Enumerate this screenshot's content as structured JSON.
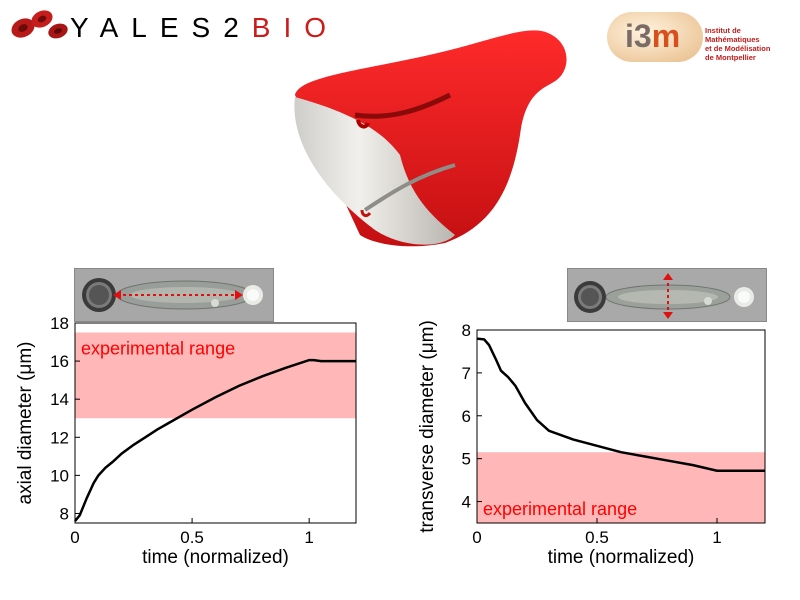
{
  "header": {
    "left_logo_text": {
      "part1": "YALES2",
      "part2": "BIO"
    },
    "right_logo": {
      "name_part1": "i3",
      "name_part2": "m",
      "caption_lines": [
        "Institut de Mathématiques",
        "et de Modélisation",
        "de Montpellier"
      ]
    }
  },
  "colors": {
    "range_fill": "#ffb7b7",
    "range_text": "#ff0000",
    "curve": "#000000",
    "shape_red": "#e8151a",
    "logo_red": "#cc1b1b"
  },
  "icons": {
    "left_thumb_arrow": "double-arrow-horizontal",
    "right_thumb_arrow": "double-arrow-vertical"
  },
  "chart_data": [
    {
      "type": "line",
      "title": "",
      "xlabel": "time (normalized)",
      "ylabel": "axial diameter (μm)",
      "xlim": [
        0,
        1.2
      ],
      "ylim": [
        7.5,
        18
      ],
      "xticks": [
        0,
        0.5,
        1
      ],
      "xtick_labels": [
        "0",
        "0.5",
        "1"
      ],
      "yticks": [
        8,
        10,
        12,
        14,
        16,
        18
      ],
      "ytick_labels": [
        "8",
        "10",
        "12",
        "14",
        "16",
        "18"
      ],
      "grid": false,
      "band": {
        "label": "experimental range",
        "y0": 13,
        "y1": 17.5,
        "label_position": "top-left"
      },
      "series": [
        {
          "x": [
            0,
            0.02,
            0.05,
            0.08,
            0.1,
            0.13,
            0.16,
            0.2,
            0.25,
            0.3,
            0.35,
            0.4,
            0.5,
            0.6,
            0.7,
            0.8,
            0.9,
            1.0,
            1.02,
            1.05,
            1.1,
            1.2
          ],
          "y": [
            7.6,
            7.9,
            8.8,
            9.6,
            10.0,
            10.4,
            10.7,
            11.15,
            11.6,
            12.0,
            12.4,
            12.75,
            13.45,
            14.1,
            14.7,
            15.2,
            15.65,
            16.05,
            16.05,
            16.0,
            16.0,
            16.0
          ]
        }
      ]
    },
    {
      "type": "line",
      "title": "",
      "xlabel": "time (normalized)",
      "ylabel": "transverse diameter (μm)",
      "xlim": [
        0,
        1.2
      ],
      "ylim": [
        3.5,
        8
      ],
      "xticks": [
        0,
        0.5,
        1
      ],
      "xtick_labels": [
        "0",
        "0.5",
        "1"
      ],
      "yticks": [
        4,
        5,
        6,
        7,
        8
      ],
      "ytick_labels": [
        "4",
        "5",
        "6",
        "7",
        "8"
      ],
      "grid": false,
      "band": {
        "label": "experimental range",
        "y0": 3.5,
        "y1": 5.15,
        "label_position": "bottom-left"
      },
      "series": [
        {
          "x": [
            0,
            0.03,
            0.05,
            0.08,
            0.1,
            0.13,
            0.16,
            0.2,
            0.25,
            0.3,
            0.4,
            0.5,
            0.6,
            0.7,
            0.8,
            0.9,
            1.0,
            1.05,
            1.1,
            1.2
          ],
          "y": [
            7.8,
            7.78,
            7.65,
            7.3,
            7.05,
            6.9,
            6.7,
            6.3,
            5.9,
            5.65,
            5.45,
            5.3,
            5.15,
            5.05,
            4.95,
            4.85,
            4.72,
            4.72,
            4.72,
            4.72
          ]
        }
      ]
    }
  ]
}
